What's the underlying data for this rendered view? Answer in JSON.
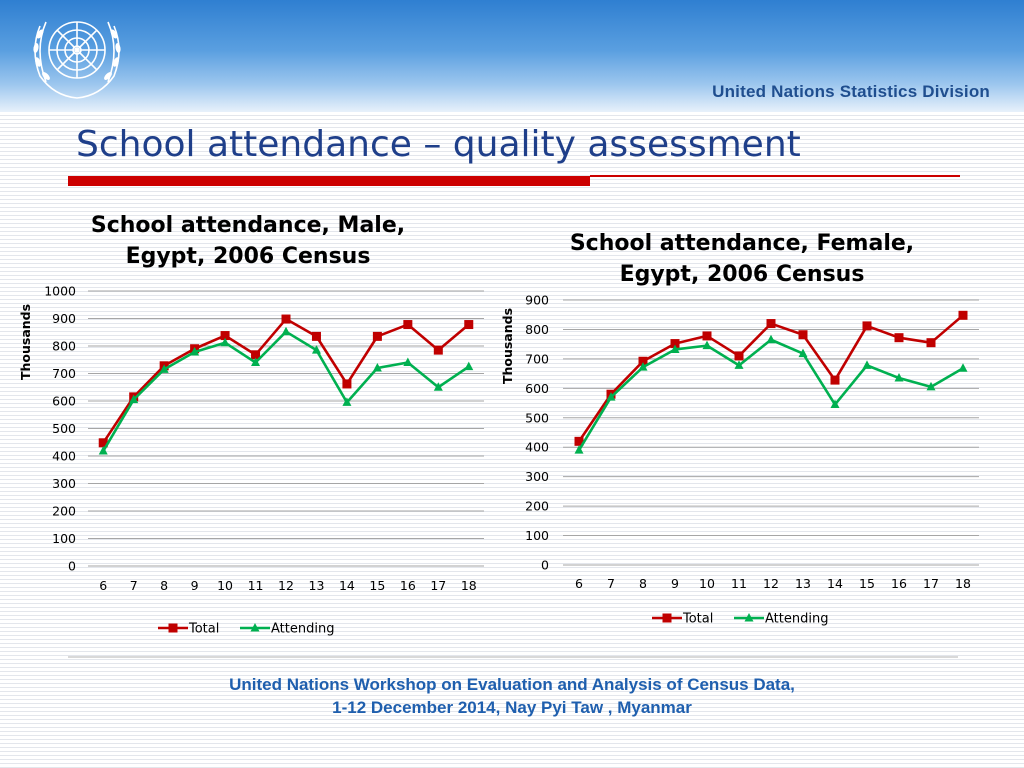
{
  "header": {
    "org_name": "United Nations Statistics Division",
    "logo_icon": "un-emblem-icon",
    "title": "School attendance – quality assessment"
  },
  "colors": {
    "total": "#c00000",
    "attending": "#00b050",
    "title": "#1f3f8a",
    "footer": "#1f5fae",
    "accent_rule": "#cc0000",
    "grid": "#a6a6a6"
  },
  "chart_data": [
    {
      "type": "line",
      "title_lines": [
        "School attendance, Male,",
        "Egypt, 2006 Census"
      ],
      "ylabel": "Thousands",
      "xlabel": "",
      "categories": [
        "6",
        "7",
        "8",
        "9",
        "10",
        "11",
        "12",
        "13",
        "14",
        "15",
        "16",
        "17",
        "18"
      ],
      "ylim": [
        0,
        1000
      ],
      "yticks": [
        0,
        100,
        200,
        300,
        400,
        500,
        600,
        700,
        800,
        900,
        1000
      ],
      "grid": true,
      "legend": "bottom",
      "series": [
        {
          "name": "Total",
          "marker": "square",
          "values": [
            448,
            615,
            728,
            790,
            838,
            768,
            898,
            835,
            662,
            835,
            878,
            785,
            878
          ]
        },
        {
          "name": "Attending",
          "marker": "triangle",
          "values": [
            418,
            605,
            715,
            778,
            812,
            740,
            852,
            785,
            595,
            720,
            740,
            650,
            725
          ]
        }
      ]
    },
    {
      "type": "line",
      "title_lines": [
        "School attendance, Female,",
        "Egypt, 2006 Census"
      ],
      "ylabel": "Thousands",
      "xlabel": "",
      "categories": [
        "6",
        "7",
        "8",
        "9",
        "10",
        "11",
        "12",
        "13",
        "14",
        "15",
        "16",
        "17",
        "18"
      ],
      "ylim": [
        0,
        900
      ],
      "yticks": [
        0,
        100,
        200,
        300,
        400,
        500,
        600,
        700,
        800,
        900
      ],
      "grid": true,
      "legend": "bottom",
      "series": [
        {
          "name": "Total",
          "marker": "square",
          "values": [
            420,
            580,
            692,
            752,
            778,
            710,
            820,
            782,
            628,
            812,
            772,
            755,
            848
          ]
        },
        {
          "name": "Attending",
          "marker": "triangle",
          "values": [
            390,
            570,
            672,
            732,
            745,
            678,
            765,
            718,
            545,
            678,
            635,
            605,
            668
          ]
        }
      ]
    }
  ],
  "footer": {
    "line1": "United Nations Workshop on  Evaluation and Analysis of Census Data,",
    "line2": "1-12 December 2014,  Nay Pyi Taw , Myanmar"
  }
}
